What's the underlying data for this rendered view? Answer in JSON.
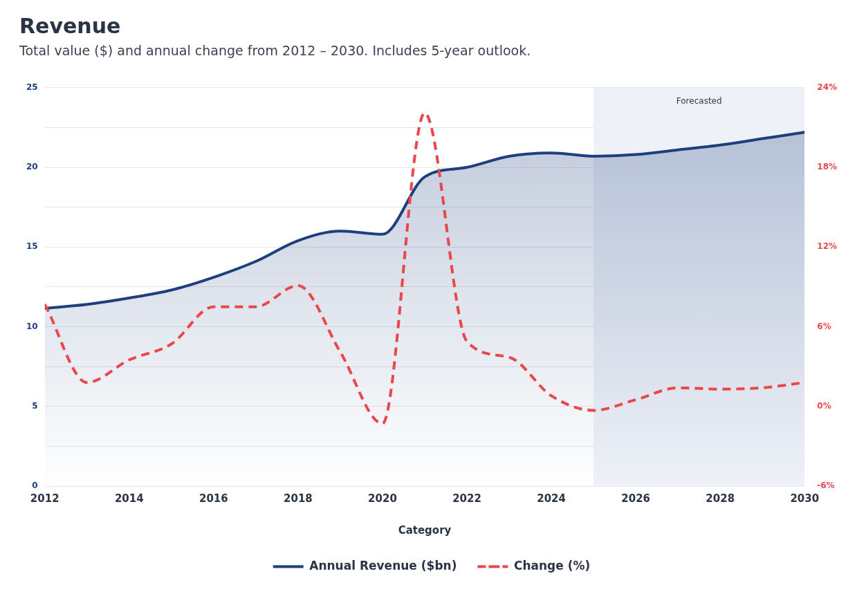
{
  "chart_data": {
    "type": "line",
    "title": "Revenue",
    "subtitle": "Total value ($) and annual change from 2012 – 2030. Includes 5-year outlook.",
    "xlabel": "Category",
    "x": [
      2012,
      2013,
      2014,
      2015,
      2016,
      2017,
      2018,
      2019,
      2020,
      2021,
      2022,
      2023,
      2024,
      2025,
      2026,
      2027,
      2028,
      2029,
      2030
    ],
    "xlim": [
      2012,
      2030
    ],
    "xticks": [
      2012,
      2014,
      2016,
      2018,
      2020,
      2022,
      2024,
      2026,
      2028,
      2030
    ],
    "ylim": [
      0,
      25
    ],
    "yticks": [
      0,
      {
        "value": 2.5,
        "label": null
      },
      5,
      {
        "value": 7.5,
        "label": null
      },
      10,
      {
        "value": 12.5,
        "label": null
      },
      15,
      {
        "value": 17.5,
        "label": null
      },
      20,
      {
        "value": 22.5,
        "label": null
      },
      25
    ],
    "y2lim": [
      -6,
      24
    ],
    "y2ticks": [
      {
        "value": -6,
        "label": "-6%"
      },
      {
        "value": 0,
        "label": "0%"
      },
      {
        "value": 6,
        "label": "6%"
      },
      {
        "value": 12,
        "label": "12%"
      },
      {
        "value": 18,
        "label": "18%"
      },
      {
        "value": 24,
        "label": "24%"
      }
    ],
    "series": [
      {
        "name": "Annual Revenue ($bn)",
        "type": "area",
        "color": "#1e3f7f",
        "line_style": "solid",
        "values": [
          11.15,
          11.4,
          11.8,
          12.3,
          13.1,
          14.1,
          15.4,
          16.0,
          15.8,
          19.4,
          20.0,
          20.7,
          20.9,
          20.7,
          20.8,
          21.1,
          21.4,
          21.8,
          22.2
        ]
      },
      {
        "name": "Change (%)",
        "axis": "y2",
        "color": "#e8474c",
        "line_style": "dashed",
        "values": [
          7.7,
          1.8,
          3.5,
          4.7,
          7.5,
          7.5,
          9.1,
          4.1,
          -1.3,
          22.1,
          4.9,
          3.7,
          0.8,
          -0.3,
          0.5,
          1.4,
          1.3,
          1.4,
          1.8
        ]
      }
    ],
    "bands": [
      {
        "axis": "x",
        "from": 2025,
        "to": 2030,
        "label": "Forecasted",
        "color": "#eef1f7"
      }
    ],
    "grid": "y",
    "legend": "bottom",
    "marker": "none"
  }
}
